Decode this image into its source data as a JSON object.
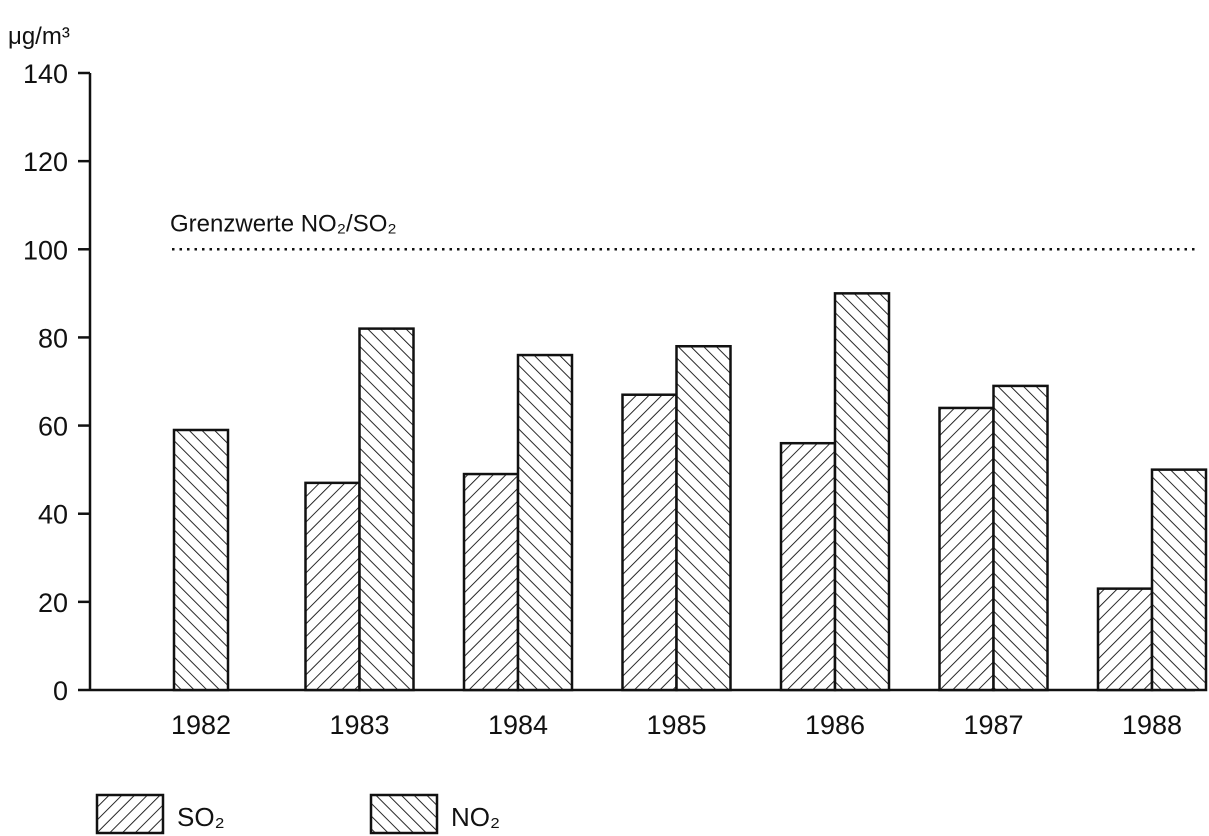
{
  "chart_data": {
    "type": "bar",
    "unit_label": "μg/m³",
    "categories": [
      "1982",
      "1983",
      "1984",
      "1985",
      "1986",
      "1987",
      "1988"
    ],
    "series": [
      {
        "name": "SO₂",
        "pattern": "hatch-forward",
        "values": [
          null,
          47,
          49,
          67,
          56,
          64,
          23
        ]
      },
      {
        "name": "NO₂",
        "pattern": "hatch-backward",
        "values": [
          59,
          82,
          76,
          78,
          90,
          69,
          50
        ]
      }
    ],
    "ylim": [
      0,
      140
    ],
    "yticks": [
      0,
      20,
      40,
      60,
      80,
      100,
      120,
      140
    ],
    "grid": false,
    "legend_position": "bottom-left",
    "reference_line": {
      "value": 100,
      "label": "Grenzwerte NO₂/SO₂",
      "style": "dotted"
    },
    "colors": {
      "stroke": "#111111",
      "background": "#ffffff"
    }
  }
}
